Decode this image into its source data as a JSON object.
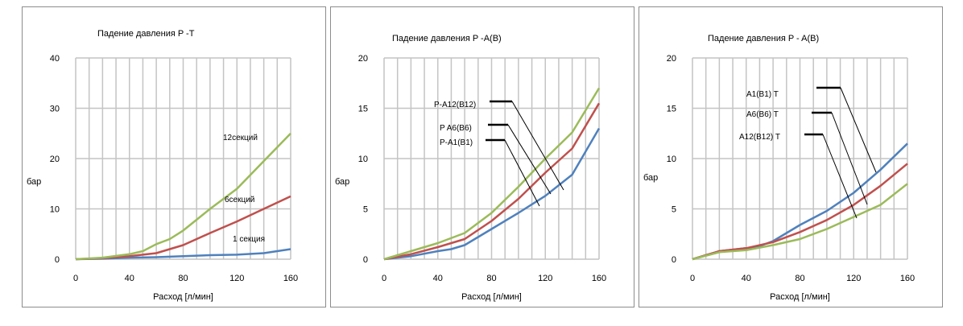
{
  "chart_data": [
    {
      "type": "line",
      "title": "Падение давления P   -T",
      "xlabel": "Расход [л/мин]",
      "ylabel": "бар",
      "xlim": [
        0,
        160
      ],
      "ylim": [
        0,
        40
      ],
      "xticks": [
        "0",
        "40",
        "80",
        "120",
        "160"
      ],
      "yticks": [
        "0",
        "10",
        "20",
        "30",
        "40"
      ],
      "grid": true,
      "series": [
        {
          "color": "#4f81bd",
          "points": [
            [
              0,
              0
            ],
            [
              20,
              0.1
            ],
            [
              40,
              0.3
            ],
            [
              60,
              0.4
            ],
            [
              80,
              0.6
            ],
            [
              100,
              0.8
            ],
            [
              120,
              0.9
            ],
            [
              140,
              1.2
            ],
            [
              160,
              2
            ]
          ]
        },
        {
          "color": "#c0504d",
          "points": [
            [
              0,
              0
            ],
            [
              20,
              0.2
            ],
            [
              40,
              0.6
            ],
            [
              60,
              1.2
            ],
            [
              80,
              2.8
            ],
            [
              100,
              5.2
            ],
            [
              120,
              7.5
            ],
            [
              140,
              10
            ],
            [
              160,
              12.5
            ]
          ]
        },
        {
          "color": "#9bbb59",
          "points": [
            [
              0,
              0
            ],
            [
              20,
              0.3
            ],
            [
              40,
              1
            ],
            [
              50,
              1.6
            ],
            [
              60,
              3
            ],
            [
              70,
              4
            ],
            [
              80,
              5.7
            ],
            [
              100,
              10
            ],
            [
              120,
              14
            ],
            [
              140,
              19.5
            ],
            [
              160,
              25
            ]
          ]
        }
      ],
      "annotations": [
        "12секций",
        "6секций",
        "1 секция"
      ]
    },
    {
      "type": "line",
      "title": "Падение давления P    -A(B)",
      "xlabel": "Расход [л/мин]",
      "ylabel": "бар",
      "xlim": [
        0,
        160
      ],
      "ylim": [
        0,
        20
      ],
      "xticks": [
        "0",
        "40",
        "80",
        "120",
        "160"
      ],
      "yticks": [
        "0",
        "5",
        "10",
        "15",
        "20"
      ],
      "grid": true,
      "series": [
        {
          "color": "#4f81bd",
          "points": [
            [
              0,
              0
            ],
            [
              20,
              0.3
            ],
            [
              40,
              0.8
            ],
            [
              50,
              1
            ],
            [
              60,
              1.4
            ],
            [
              80,
              3
            ],
            [
              100,
              4.6
            ],
            [
              120,
              6.3
            ],
            [
              140,
              8.4
            ],
            [
              160,
              13
            ]
          ]
        },
        {
          "color": "#c0504d",
          "points": [
            [
              0,
              0
            ],
            [
              20,
              0.5
            ],
            [
              40,
              1.2
            ],
            [
              60,
              2
            ],
            [
              80,
              3.8
            ],
            [
              100,
              6
            ],
            [
              120,
              8.6
            ],
            [
              140,
              11
            ],
            [
              160,
              15.5
            ]
          ]
        },
        {
          "color": "#9bbb59",
          "points": [
            [
              0,
              0
            ],
            [
              20,
              0.8
            ],
            [
              40,
              1.6
            ],
            [
              60,
              2.6
            ],
            [
              80,
              4.6
            ],
            [
              100,
              7.2
            ],
            [
              120,
              10
            ],
            [
              140,
              12.6
            ],
            [
              160,
              17
            ]
          ]
        }
      ],
      "annotations": [
        "P-A12(B12)",
        "P    A6(B6)",
        "P-A1(B1)"
      ]
    },
    {
      "type": "line",
      "title": "Падение давления P -    A(B)",
      "xlabel": "Расход [л/мин]",
      "ylabel": "бар",
      "xlim": [
        0,
        160
      ],
      "ylim": [
        0,
        20
      ],
      "xticks": [
        "0",
        "40",
        "80",
        "120",
        "160"
      ],
      "yticks": [
        "0",
        "5",
        "10",
        "15",
        "20"
      ],
      "grid": true,
      "series": [
        {
          "color": "#4f81bd",
          "points": [
            [
              0,
              0
            ],
            [
              20,
              0.8
            ],
            [
              40,
              1.1
            ],
            [
              50,
              1.3
            ],
            [
              60,
              1.8
            ],
            [
              80,
              3.4
            ],
            [
              100,
              4.8
            ],
            [
              120,
              6.6
            ],
            [
              140,
              8.9
            ],
            [
              160,
              11.5
            ]
          ]
        },
        {
          "color": "#c0504d",
          "points": [
            [
              0,
              0
            ],
            [
              20,
              0.8
            ],
            [
              40,
              1.1
            ],
            [
              60,
              1.7
            ],
            [
              80,
              2.7
            ],
            [
              100,
              3.9
            ],
            [
              120,
              5.4
            ],
            [
              140,
              7.3
            ],
            [
              160,
              9.5
            ]
          ]
        },
        {
          "color": "#9bbb59",
          "points": [
            [
              0,
              0
            ],
            [
              20,
              0.7
            ],
            [
              40,
              0.9
            ],
            [
              60,
              1.4
            ],
            [
              80,
              2
            ],
            [
              100,
              3
            ],
            [
              120,
              4.2
            ],
            [
              140,
              5.4
            ],
            [
              160,
              7.5
            ]
          ]
        }
      ],
      "annotations": [
        "A1(B1)      T",
        "A6(B6)      T",
        "A12(B12)      T"
      ]
    }
  ]
}
